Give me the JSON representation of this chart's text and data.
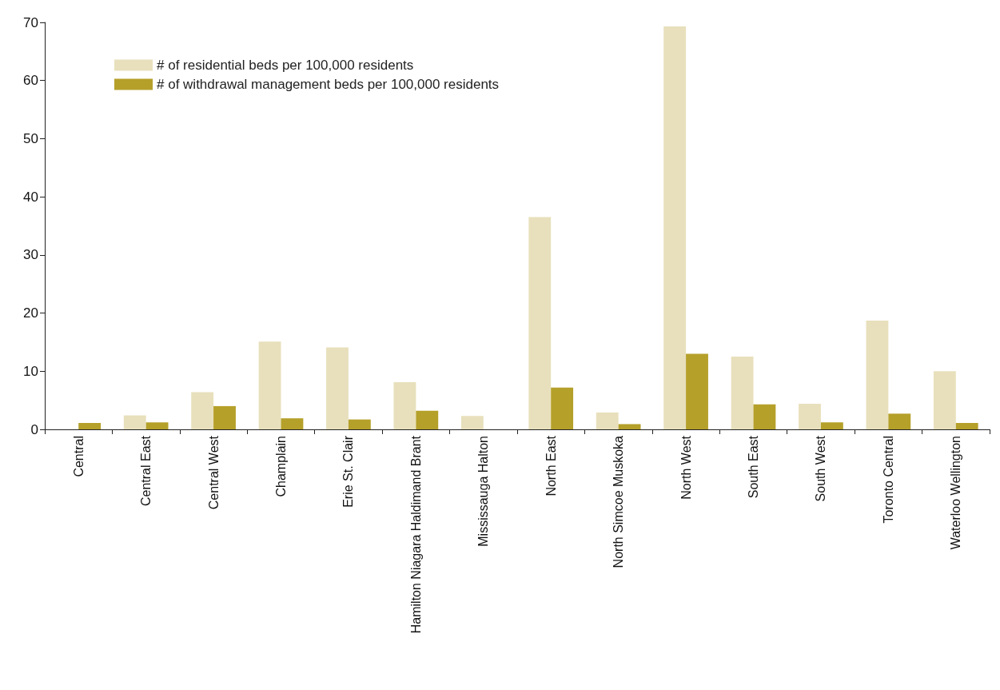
{
  "chart_data": {
    "type": "bar",
    "categories": [
      "Central",
      "Central East",
      "Central West",
      "Champlain",
      "Erie St. Clair",
      "Hamilton Niagara Haldimand Brant",
      "Mississauga Halton",
      "North East",
      "North Simcoe Muskoka",
      "North West",
      "South East",
      "South West",
      "Toronto Central",
      "Waterloo Wellington"
    ],
    "series": [
      {
        "name": "# of residential beds per 100,000 residents",
        "color": "#e8e0bc",
        "values": [
          0,
          2.4,
          6.4,
          15.1,
          14.1,
          8.1,
          2.3,
          36.5,
          2.9,
          69.3,
          12.5,
          4.4,
          18.7,
          10.0
        ]
      },
      {
        "name": "# of withdrawal management beds per 100,000 residents",
        "color": "#b5a02a",
        "values": [
          1.1,
          1.2,
          4.0,
          1.9,
          1.7,
          3.2,
          0,
          7.2,
          0.9,
          13.0,
          4.3,
          1.2,
          2.7,
          1.1
        ]
      }
    ],
    "ylim": [
      0,
      70
    ],
    "yticks": [
      0,
      10,
      20,
      30,
      40,
      50,
      60,
      70
    ],
    "grid": false,
    "legend": "top left"
  }
}
